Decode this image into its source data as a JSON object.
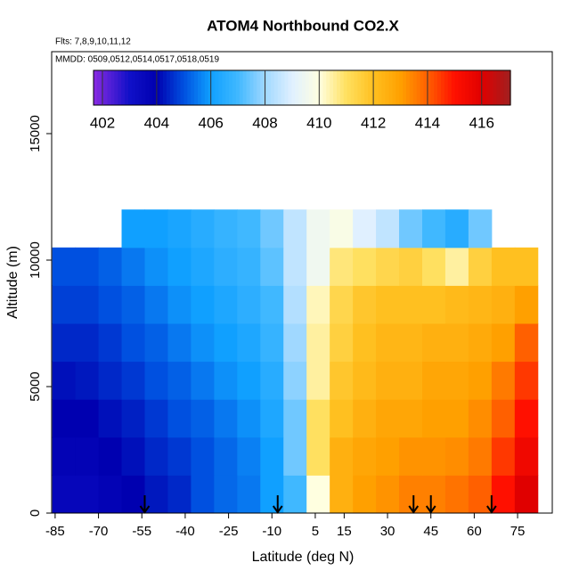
{
  "chart_data": {
    "type": "heatmap",
    "title": "ATOM4 Northbound CO2.X",
    "subtitle": "Flts: 7,8,9,10,11,12",
    "annotation": "MMDD: 0509,0512,0514,0517,0518,0519",
    "x_label": "Latitude (deg N)",
    "y_label": "Altitude (m)",
    "xlim": [
      -86.2,
      87
    ],
    "ylim": [
      0,
      18240
    ],
    "xticks": [
      -85,
      -70,
      -55,
      -40,
      -25,
      -10,
      5,
      15,
      30,
      45,
      60,
      75
    ],
    "yticks": [
      0,
      5000,
      10000,
      15000
    ],
    "x_edges": [
      -86,
      -78,
      -70,
      -62,
      -54,
      -46,
      -38,
      -30,
      -22,
      -14,
      -6,
      2,
      10,
      18,
      26,
      34,
      42,
      50,
      58,
      66,
      74,
      82
    ],
    "y_edges": [
      0,
      1500,
      3000,
      4500,
      6000,
      7500,
      9000,
      10500,
      12000
    ],
    "z": [
      [
        403.6,
        403.6,
        403.8,
        404,
        404.3,
        404.5,
        405,
        405.3,
        405.5,
        406,
        407,
        410,
        412.5,
        413,
        413.2,
        413.5,
        413.5,
        413.7,
        414,
        415,
        416
      ],
      [
        403.8,
        403.8,
        404,
        404.2,
        404.5,
        404.7,
        405,
        405.3,
        405.6,
        406,
        407.5,
        411,
        412.5,
        412.8,
        413,
        413.2,
        413.2,
        413.3,
        413.6,
        414.5,
        415.5
      ],
      [
        404,
        404,
        404.2,
        404.4,
        404.7,
        405,
        405.2,
        405.5,
        405.8,
        406.3,
        407.5,
        411,
        412,
        412.5,
        412.8,
        412.8,
        413,
        413,
        413.3,
        414,
        415
      ],
      [
        404.2,
        404.3,
        404.5,
        404.7,
        405,
        405.2,
        405.5,
        405.8,
        406,
        406.5,
        407.8,
        410.5,
        411.8,
        412.2,
        412.5,
        412.5,
        412.8,
        412.8,
        413,
        413.6,
        414.5
      ],
      [
        404.5,
        404.5,
        404.7,
        405,
        405.2,
        405.5,
        405.8,
        406,
        406.3,
        406.8,
        408,
        410.5,
        411.5,
        412,
        412.3,
        412.3,
        412.5,
        412.5,
        412.7,
        413,
        414
      ],
      [
        404.8,
        404.8,
        405,
        405.2,
        405.5,
        405.8,
        406,
        406.3,
        406.6,
        407,
        408.3,
        410.3,
        411.3,
        411.8,
        412,
        412,
        412,
        412.2,
        412.3,
        412.5,
        413
      ],
      [
        405,
        405,
        405.2,
        405.5,
        405.8,
        406,
        406.3,
        406.6,
        406.8,
        407.3,
        408.5,
        409.5,
        410.8,
        411,
        411.3,
        411.5,
        411,
        410.5,
        411.5,
        412,
        412
      ],
      [
        null,
        null,
        null,
        406,
        406,
        406.2,
        406.5,
        406.8,
        407,
        407.5,
        408.5,
        409.5,
        409.8,
        409,
        408.5,
        407.5,
        407,
        406.5,
        407.5,
        null,
        null
      ]
    ],
    "arrows": [
      -54,
      -8,
      39,
      45,
      66
    ],
    "colorbar_lim": [
      401.67,
      417.06
    ],
    "colorbar_ticks": [
      402,
      404,
      406,
      408,
      410,
      412,
      414,
      416
    ],
    "colorscale": [
      [
        401.67,
        "#8a2be2"
      ],
      [
        403,
        "#1010c8"
      ],
      [
        404,
        "#0000b0"
      ],
      [
        405,
        "#0050e0"
      ],
      [
        406,
        "#10a0ff"
      ],
      [
        407,
        "#40b8ff"
      ],
      [
        408,
        "#a0d8ff"
      ],
      [
        409,
        "#e0f0ff"
      ],
      [
        410,
        "#ffffe0"
      ],
      [
        411,
        "#ffe060"
      ],
      [
        412,
        "#ffc020"
      ],
      [
        413,
        "#ffa000"
      ],
      [
        414,
        "#ff6000"
      ],
      [
        415,
        "#ff1000"
      ],
      [
        416,
        "#e00000"
      ],
      [
        417.06,
        "#a02020"
      ]
    ]
  }
}
